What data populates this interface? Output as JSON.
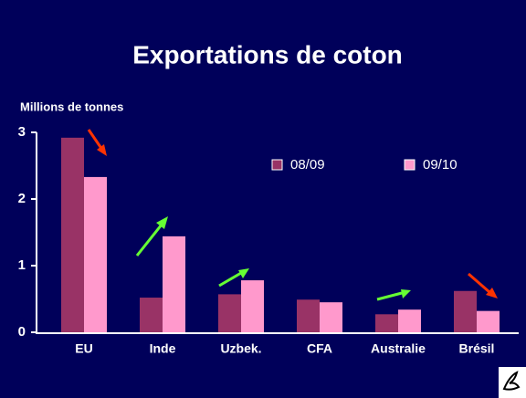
{
  "chart_data": {
    "type": "bar",
    "title": "Exportations de coton",
    "y_label": "Millions de tonnes",
    "categories": [
      "EU",
      "Inde",
      "Uzbek.",
      "CFA",
      "Australie",
      "Brésil"
    ],
    "series": [
      {
        "name": "08/09",
        "color": "#993366",
        "values": [
          2.92,
          0.52,
          0.57,
          0.49,
          0.27,
          0.62
        ]
      },
      {
        "name": "09/10",
        "color": "#ff99cc",
        "values": [
          2.33,
          1.44,
          0.78,
          0.45,
          0.34,
          0.32
        ]
      }
    ],
    "ylim": [
      0,
      3
    ],
    "yticks": [
      0,
      1,
      2,
      3
    ],
    "legend": "top-right"
  }
}
